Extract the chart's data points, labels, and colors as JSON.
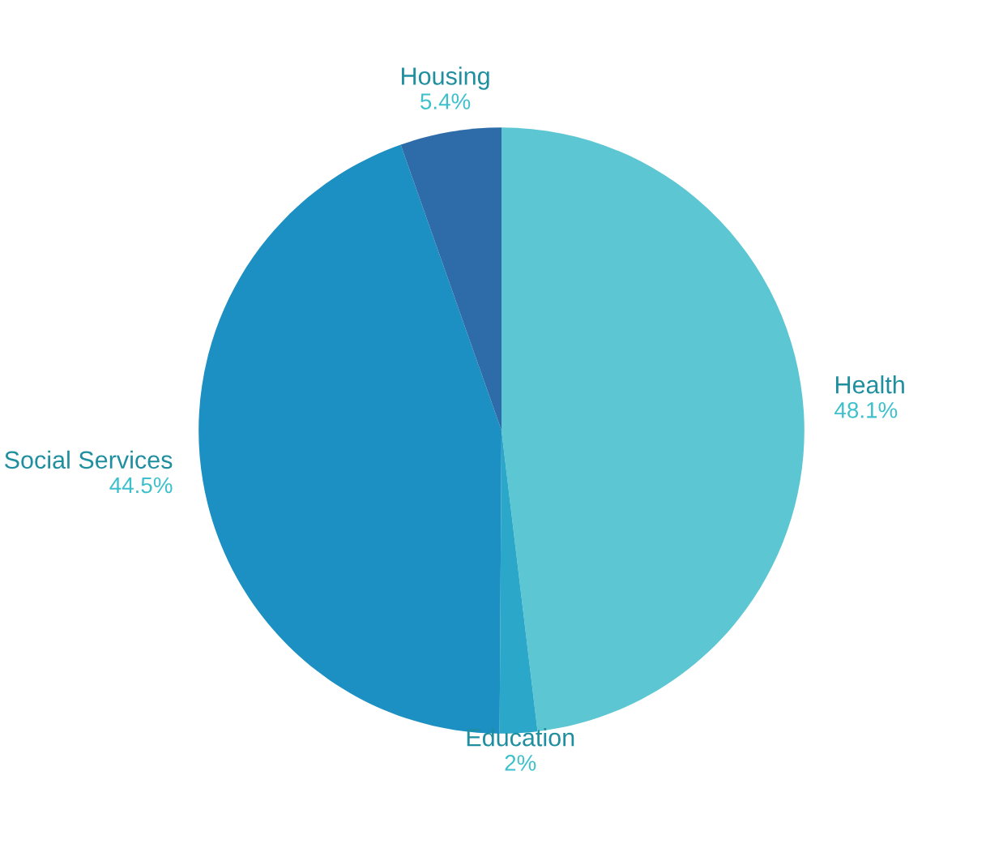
{
  "chart_data": {
    "type": "pie",
    "categories": [
      "Health",
      "Education",
      "Social Services",
      "Housing"
    ],
    "values": [
      48.1,
      2,
      44.5,
      5.4
    ],
    "value_labels": [
      "48.1%",
      "2%",
      "44.5%",
      "5.4%"
    ],
    "colors": [
      "#5cc6d2",
      "#2ba7c9",
      "#1c90c2",
      "#2d6ca8"
    ]
  }
}
